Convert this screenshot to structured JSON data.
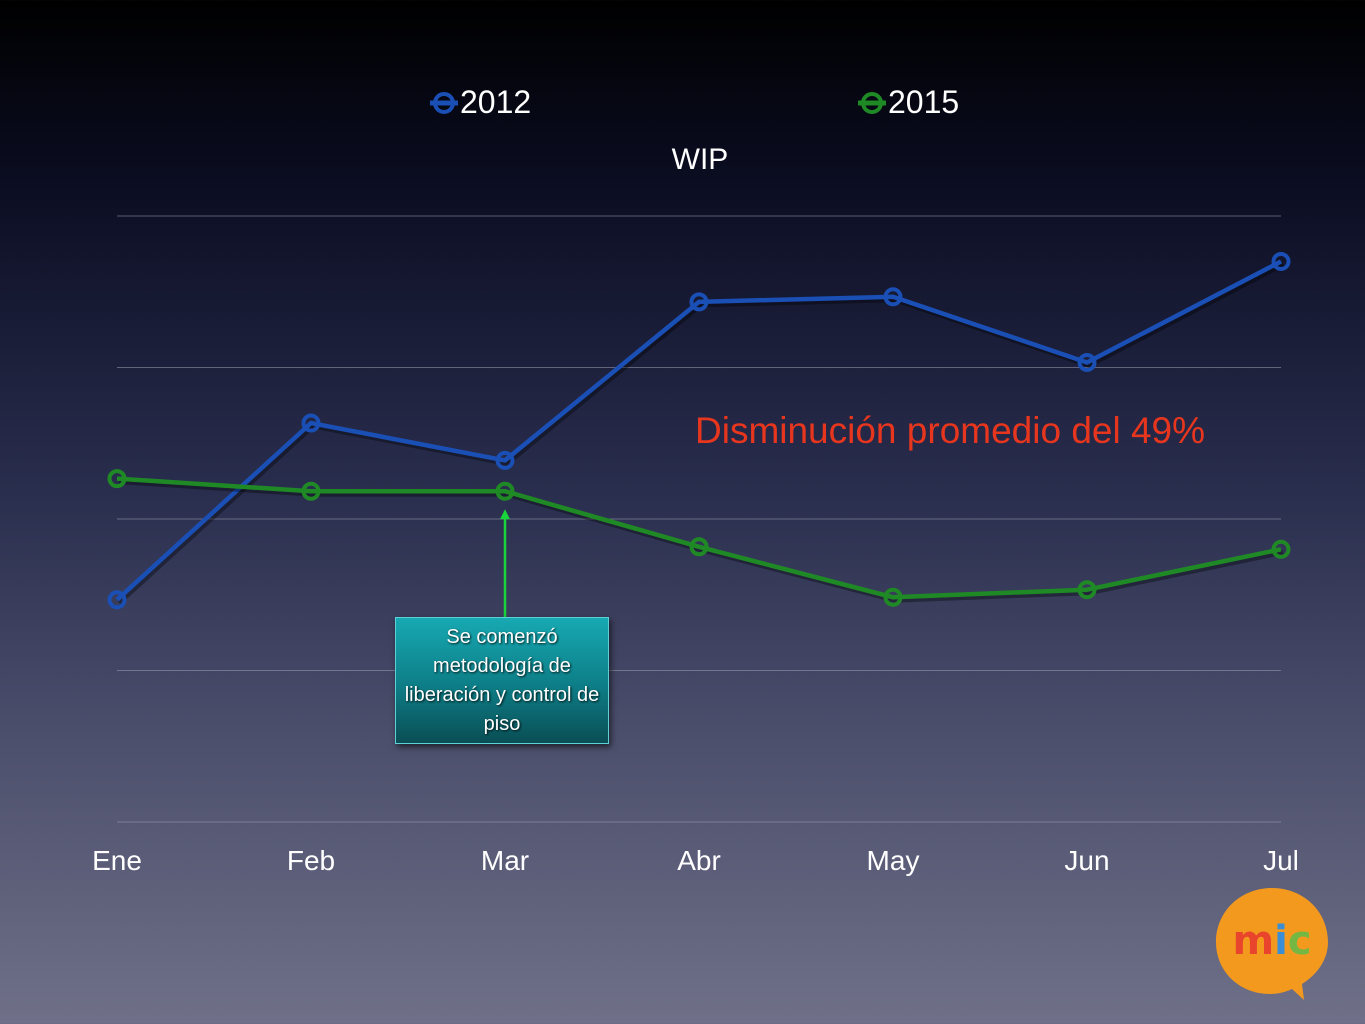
{
  "chart_data": {
    "type": "line",
    "title": "WIP",
    "categories": [
      "Ene",
      "Feb",
      "Mar",
      "Abr",
      "May",
      "Jun",
      "Jul"
    ],
    "series": [
      {
        "name": "2012",
        "color": "#1a4fb5",
        "values": [
          44,
          79,
          71.6,
          103,
          104,
          91,
          111
        ]
      },
      {
        "name": "2015",
        "color": "#1f8a25",
        "values": [
          68,
          65.5,
          65.5,
          54.5,
          44.5,
          46,
          54
        ]
      }
    ],
    "ylim": [
      0,
      120
    ],
    "grid": true,
    "legend": "top",
    "annotation": {
      "text": "Disminución promedio del 49%",
      "color": "#e8361e"
    },
    "callout": {
      "text": "Se comenzó metodología de liberación y control de piso",
      "points_to": "Mar",
      "arrow_color": "#19d43a"
    }
  },
  "logo": {
    "text": "mic",
    "colors": [
      "#f39a1e",
      "#e8452c",
      "#3a8ed6",
      "#74b843"
    ]
  }
}
